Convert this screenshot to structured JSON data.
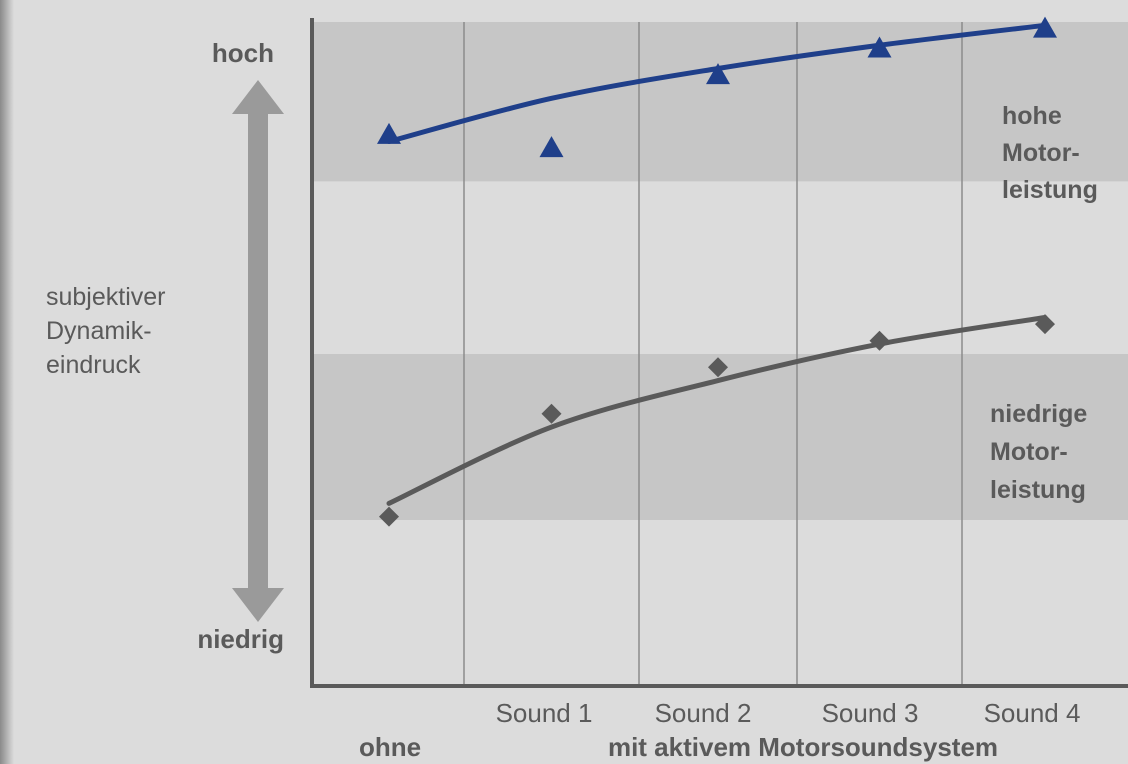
{
  "chart_data": {
    "type": "line",
    "x_categories": [
      "Sound 1",
      "Sound 2",
      "Sound 3",
      "Sound 4"
    ],
    "x_group_labels": {
      "baseline": "ohne",
      "active": "mit aktivem Motorsoundsystem"
    },
    "y_axis": {
      "label_lines": [
        "subjektiver",
        "Dynamik-",
        "eindruck"
      ],
      "top_label": "hoch",
      "bottom_label": "niedrig",
      "range": [
        0,
        10
      ]
    },
    "series": [
      {
        "label_lines": [
          "hohe",
          "Motor-",
          "leistung"
        ],
        "marker": "triangle",
        "color": "#1f3f8a",
        "points": [
          {
            "x": 0.5,
            "y": 8.3
          },
          {
            "x": 1.5,
            "y": 8.1
          },
          {
            "x": 2.5,
            "y": 9.2
          },
          {
            "x": 3.5,
            "y": 9.6
          },
          {
            "x": 4.5,
            "y": 9.9
          }
        ],
        "trend": [
          {
            "x": 0.5,
            "y": 8.2
          },
          {
            "x": 1.5,
            "y": 8.85
          },
          {
            "x": 2.5,
            "y": 9.3
          },
          {
            "x": 3.5,
            "y": 9.65
          },
          {
            "x": 4.5,
            "y": 9.95
          }
        ]
      },
      {
        "label_lines": [
          "niedrige",
          "Motor-",
          "leistung"
        ],
        "marker": "diamond",
        "color": "#5a5a5a",
        "points": [
          {
            "x": 0.5,
            "y": 2.55
          },
          {
            "x": 1.5,
            "y": 4.1
          },
          {
            "x": 2.5,
            "y": 4.8
          },
          {
            "x": 3.5,
            "y": 5.2
          },
          {
            "x": 4.5,
            "y": 5.45
          }
        ],
        "trend": [
          {
            "x": 0.5,
            "y": 2.75
          },
          {
            "x": 1.5,
            "y": 3.9
          },
          {
            "x": 2.5,
            "y": 4.6
          },
          {
            "x": 3.5,
            "y": 5.15
          },
          {
            "x": 4.5,
            "y": 5.55
          }
        ]
      }
    ],
    "bands": [
      [
        7.6,
        10
      ],
      [
        2.5,
        5.0
      ]
    ],
    "colors": {
      "background": "#dcdcdc",
      "band": "#c6c6c6",
      "axis": "#5a5a5a",
      "grid": "#8c8c8c",
      "arrow": "#9a9a9a"
    }
  }
}
